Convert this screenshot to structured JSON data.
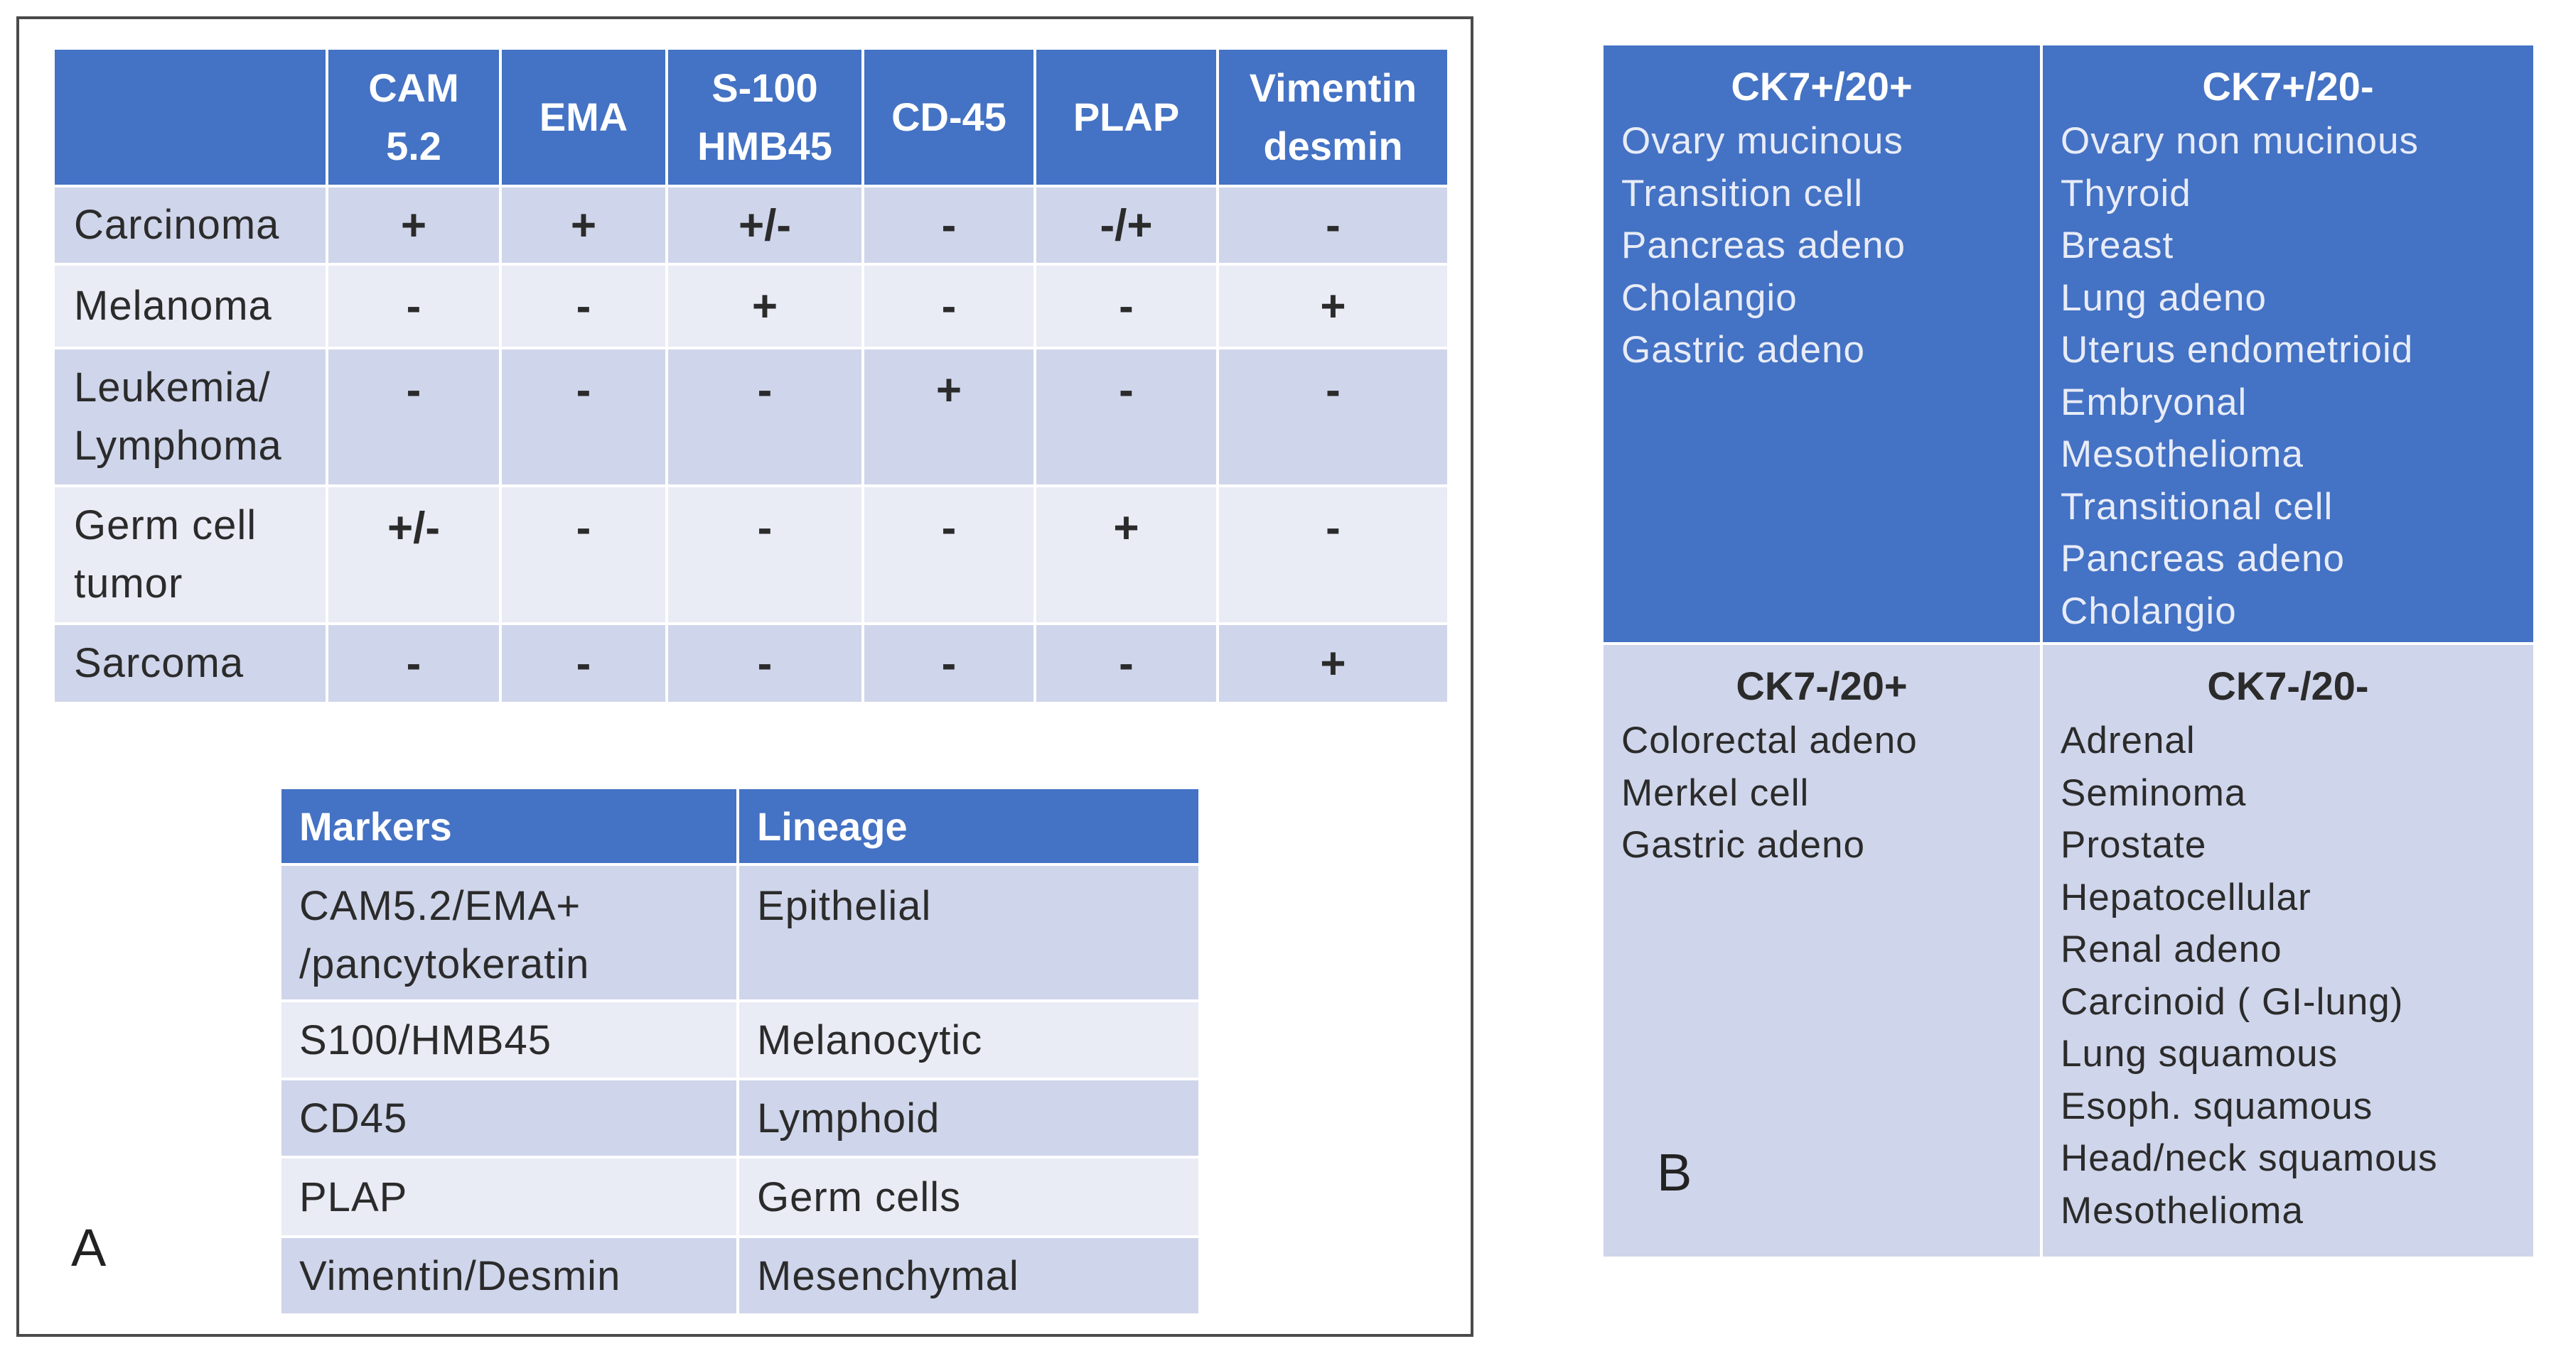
{
  "panel_a": {
    "label": "A",
    "markers_table": {
      "columns": [
        "",
        "CAM\n5.2",
        "EMA",
        "S-100\nHMB45",
        "CD-45",
        "PLAP",
        "Vimentin\ndesmin"
      ],
      "rows": [
        {
          "label": "Carcinoma",
          "values": [
            "+",
            "+",
            "+/-",
            "-",
            "-/+",
            "-"
          ]
        },
        {
          "label": "Melanoma",
          "values": [
            "-",
            "-",
            "+",
            "-",
            "-",
            "+"
          ]
        },
        {
          "label": "Leukemia/\nLymphoma",
          "values": [
            "-",
            "-",
            "-",
            "+",
            "-",
            "-"
          ]
        },
        {
          "label": "Germ cell\ntumor",
          "values": [
            "+/-",
            "-",
            "-",
            "-",
            "+",
            "-"
          ]
        },
        {
          "label": "Sarcoma",
          "values": [
            "-",
            "-",
            "-",
            "-",
            "-",
            "+"
          ]
        }
      ]
    },
    "lineage_table": {
      "headers": [
        "Markers",
        "Lineage"
      ],
      "rows": [
        [
          "CAM5.2/EMA+\n/pancytokeratin",
          "Epithelial"
        ],
        [
          "S100/HMB45",
          "Melanocytic"
        ],
        [
          "CD45",
          "Lymphoid"
        ],
        [
          "PLAP",
          "Germ cells"
        ],
        [
          "Vimentin/Desmin",
          "Mesenchymal"
        ]
      ]
    }
  },
  "panel_b": {
    "label": "B",
    "quadrants": [
      {
        "title": "CK7+/20+",
        "items": [
          "Ovary  mucinous",
          "Transition cell",
          "Pancreas adeno",
          "Cholangio",
          "Gastric adeno"
        ]
      },
      {
        "title": "CK7+/20-",
        "items": [
          "Ovary non mucinous",
          "Thyroid",
          "Breast",
          "Lung adeno",
          "Uterus endometrioid",
          "Embryonal",
          "Mesothelioma",
          "Transitional cell",
          "Pancreas adeno",
          "Cholangio"
        ]
      },
      {
        "title": "CK7-/20+",
        "items": [
          "Colorectal adeno",
          "Merkel cell",
          "Gastric adeno"
        ]
      },
      {
        "title": "CK7-/20-",
        "items": [
          "Adrenal",
          "Seminoma",
          "Prostate",
          "Hepatocellular",
          "Renal adeno",
          "Carcinoid ( GI-lung)",
          "Lung squamous",
          "Esoph. squamous",
          "Head/neck squamous",
          "Mesothelioma"
        ]
      }
    ]
  },
  "colors": {
    "header_blue": "#4472c4",
    "row_dark": "#cfd5ea",
    "row_light": "#e9ebf5"
  }
}
